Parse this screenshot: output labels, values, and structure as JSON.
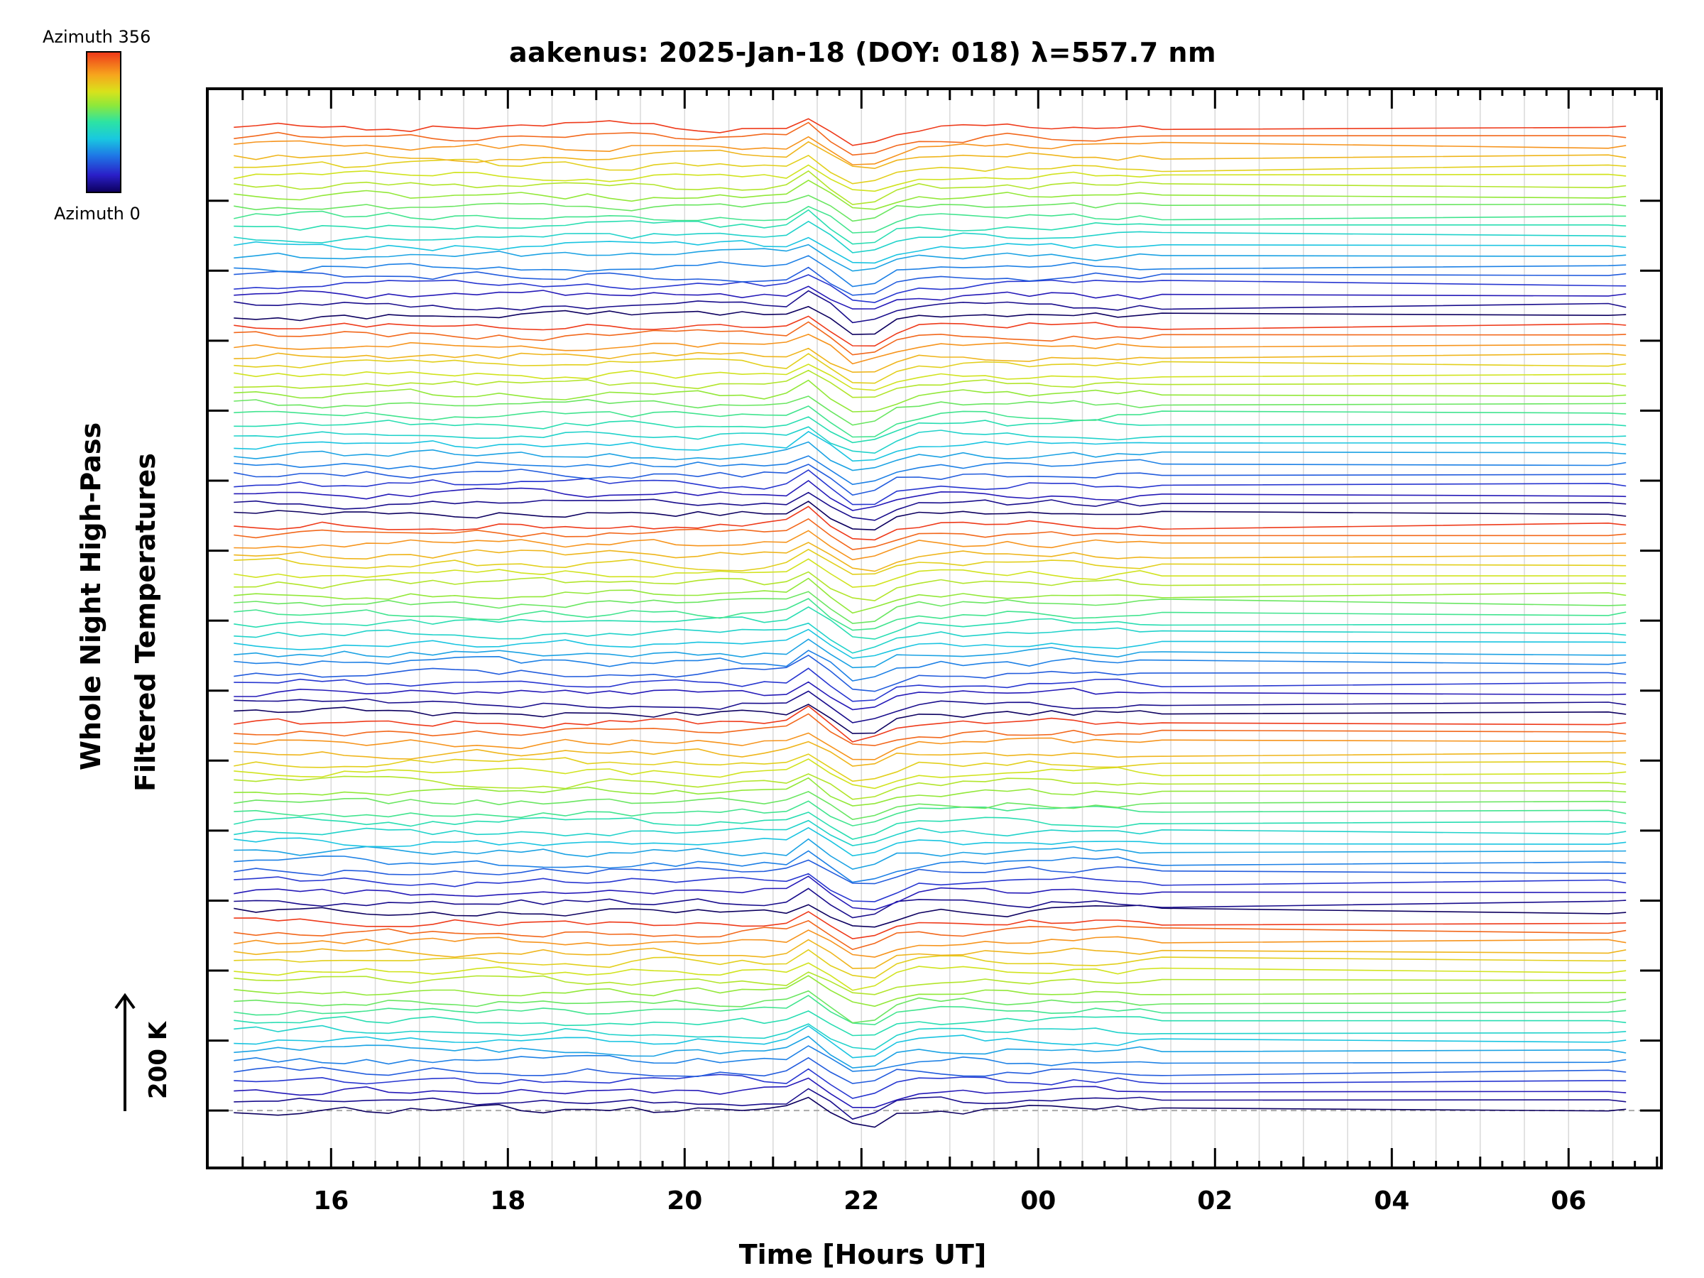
{
  "chart_data": {
    "type": "line",
    "title": "aakenus: 2025-Jan-18 (DOY: 018) λ=557.7 nm",
    "xlabel": "Time [Hours UT]",
    "ylabel_line1": "Whole Night High-Pass",
    "ylabel_line2": "Filtered Temperatures",
    "scale_bar_label": "200 K",
    "xlim_hours": [
      14.6,
      31.05
    ],
    "ylim": [
      -0.82,
      14.6
    ],
    "x_tick_labels": [
      "16",
      "18",
      "20",
      "22",
      "00",
      "02",
      "04",
      "06"
    ],
    "x_tick_hours": [
      16,
      18,
      20,
      22,
      24,
      26,
      28,
      30
    ],
    "y_major_tick_count": 14,
    "colorbar": {
      "top_label": "Azimuth 356",
      "bottom_label": "Azimuth 0",
      "min": 0,
      "max": 356
    },
    "data_start_hour": 14.9,
    "data_end_hour": 30.65,
    "gap_start_hour": 25.6,
    "gap_end_hour": 30.45,
    "series_count": 100,
    "group_count": 5,
    "series_per_group": 20,
    "series_spacing": 0.142,
    "noise_amplitude": 0.055,
    "event_hour": 22.0,
    "event_depth": 0.25,
    "event_peak_hour": 21.45,
    "event_peak_height": 0.2,
    "reference_line_value": 0
  },
  "colors": {
    "frame": "#000000",
    "grid": "#d9d9d9",
    "reference_line": "#aaaaaa",
    "scale": [
      "#0d0060",
      "#2a1fc8",
      "#1e78e6",
      "#19c8e0",
      "#2ce3a4",
      "#8ee83a",
      "#d9e21b",
      "#f7a51d",
      "#ee3a1a"
    ]
  }
}
